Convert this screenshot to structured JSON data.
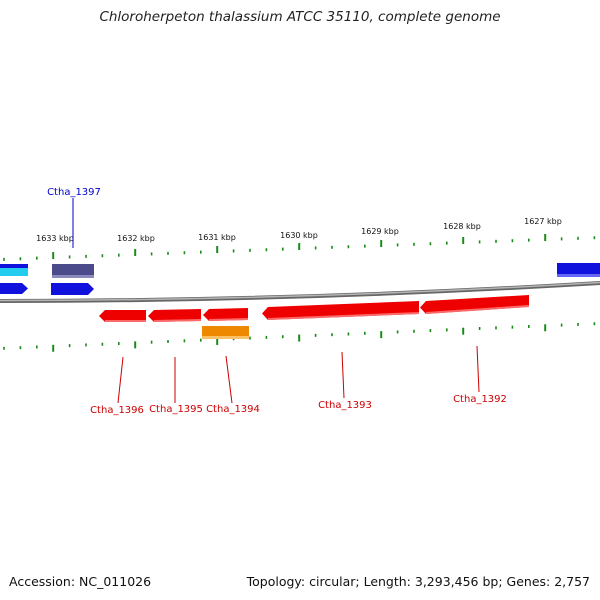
{
  "title": "Chloroherpeton thalassium ATCC 35110, complete genome",
  "footer": {
    "accession": "Accession: NC_011026",
    "stats": "Topology: circular; Length: 3,293,456 bp; Genes: 2,757"
  },
  "colors": {
    "backbone": "#8a8a8a",
    "tick": "#1a8a1a",
    "gene_red": "#ee0000",
    "gene_blue": "#1111dd",
    "gene_navy": "#4b4b8c",
    "gene_cyan": "#22ccee",
    "gene_orange": "#ee8800",
    "label_red": "#cc0000",
    "label_blue": "#0000cc"
  },
  "scale": {
    "unit": "kbp",
    "labels": [
      "1633 kbp",
      "1632 kbp",
      "1631 kbp",
      "1630 kbp",
      "1629 kbp",
      "1628 kbp",
      "1627 kbp"
    ]
  },
  "genes": [
    {
      "name": "Ctha_1397",
      "strand": "forward",
      "color": "gene_navy",
      "labelled": true
    },
    {
      "name": "Ctha_1396",
      "strand": "reverse",
      "color": "gene_red",
      "labelled": true
    },
    {
      "name": "Ctha_1395",
      "strand": "reverse",
      "color": "gene_red",
      "labelled": true
    },
    {
      "name": "Ctha_1394",
      "strand": "reverse",
      "color": "gene_orange",
      "labelled": true
    },
    {
      "name": "Ctha_1393",
      "strand": "reverse",
      "color": "gene_red",
      "labelled": true
    },
    {
      "name": "Ctha_1392",
      "strand": "reverse",
      "color": "gene_red",
      "labelled": true
    }
  ]
}
